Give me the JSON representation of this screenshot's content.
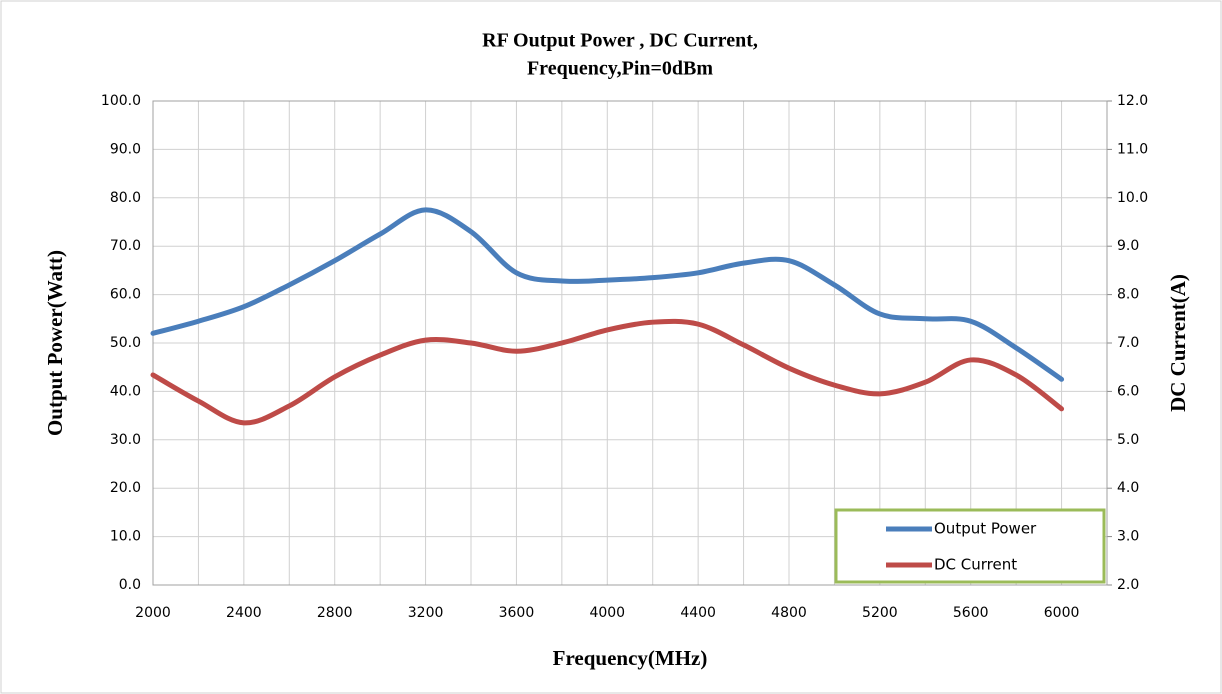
{
  "chart_data": {
    "type": "line",
    "title": [
      "RF Output Power , DC Current,",
      "Frequency,Pin=0dBm"
    ],
    "x_label": "Frequency(MHz)",
    "y_label": "Output  Power(Watt)",
    "y2_label": "DC Current(A)",
    "x": [
      2000,
      2200,
      2400,
      2600,
      2800,
      3000,
      3200,
      3400,
      3600,
      3800,
      4000,
      4200,
      4400,
      4600,
      4800,
      5000,
      5200,
      5400,
      5600,
      5800,
      6000
    ],
    "series": [
      {
        "name": "Output Power",
        "color": "#4a7ebb",
        "values": [
          52,
          54.5,
          57.5,
          62,
          67,
          72.5,
          77.5,
          73,
          64.5,
          62.8,
          63,
          63.5,
          64.5,
          66.5,
          67,
          62,
          56,
          55,
          54.5,
          49,
          42.5
        ]
      },
      {
        "name": "DC Current",
        "color": "#be4b48",
        "axis": "y2",
        "values": [
          6.34,
          5.8,
          5.35,
          5.7,
          6.3,
          6.75,
          7.06,
          7.0,
          6.83,
          7.0,
          7.27,
          7.43,
          7.39,
          6.96,
          6.48,
          6.13,
          5.95,
          6.19,
          6.65,
          6.34,
          5.64
        ]
      }
    ],
    "xlim": [
      2000,
      6200
    ],
    "xticks": [
      2000,
      2400,
      2800,
      3200,
      3600,
      4000,
      4400,
      4800,
      5200,
      5600,
      6000
    ],
    "ylim": [
      0,
      100
    ],
    "yticks": [
      {
        "value": 0,
        "label": "0.0"
      },
      {
        "value": 10,
        "label": "10.0"
      },
      {
        "value": 20,
        "label": "20.0"
      },
      {
        "value": 30,
        "label": "30.0"
      },
      {
        "value": 40,
        "label": "40.0"
      },
      {
        "value": 50,
        "label": "50.0"
      },
      {
        "value": 60,
        "label": "60.0"
      },
      {
        "value": 70,
        "label": "70.0"
      },
      {
        "value": 80,
        "label": "80.0"
      },
      {
        "value": 90,
        "label": "90.0"
      },
      {
        "value": 100,
        "label": "100.0"
      }
    ],
    "y2lim": [
      2,
      12
    ],
    "y2ticks": [
      {
        "value": 2,
        "label": "2.0"
      },
      {
        "value": 3,
        "label": "3.0"
      },
      {
        "value": 4,
        "label": "4.0"
      },
      {
        "value": 5,
        "label": "5.0"
      },
      {
        "value": 6,
        "label": "6.0"
      },
      {
        "value": 7,
        "label": "7.0"
      },
      {
        "value": 8,
        "label": "8.0"
      },
      {
        "value": 9,
        "label": "9.0"
      },
      {
        "value": 10,
        "label": "10.0"
      },
      {
        "value": 11,
        "label": "11.0"
      },
      {
        "value": 12,
        "label": "12.0"
      }
    ],
    "grid": true,
    "legend": "lower right"
  }
}
